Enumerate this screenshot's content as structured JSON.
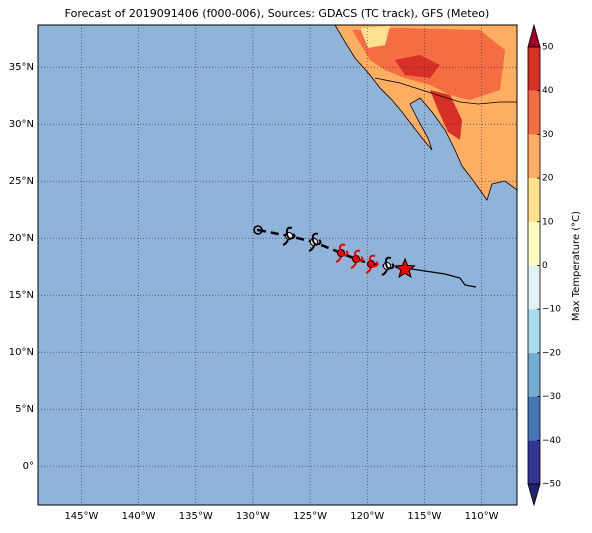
{
  "title": "Forecast of 2019091406 (f000-006), Sources: GDACS (TC track), GFS (Meteo)",
  "map": {
    "xlim": [
      -148.8,
      -106.9
    ],
    "ylim": [
      -3.4,
      38.7
    ],
    "xticks": [
      {
        "value": -145,
        "label": "145°W"
      },
      {
        "value": -140,
        "label": "140°W"
      },
      {
        "value": -135,
        "label": "135°W"
      },
      {
        "value": -130,
        "label": "130°W"
      },
      {
        "value": -125,
        "label": "125°W"
      },
      {
        "value": -120,
        "label": "120°W"
      },
      {
        "value": -115,
        "label": "115°W"
      },
      {
        "value": -110,
        "label": "110°W"
      }
    ],
    "yticks": [
      {
        "value": 0,
        "label": "0°"
      },
      {
        "value": 5,
        "label": "5°N"
      },
      {
        "value": 10,
        "label": "10°N"
      },
      {
        "value": 15,
        "label": "15°N"
      },
      {
        "value": 20,
        "label": "20°N"
      },
      {
        "value": 25,
        "label": "25°N"
      },
      {
        "value": 30,
        "label": "30°N"
      },
      {
        "value": 35,
        "label": "35°N"
      }
    ]
  },
  "colorbar": {
    "label": "Max Temperature (°C)",
    "lim": [
      -50,
      50
    ],
    "ticks": [
      {
        "value": -50,
        "label": "−50"
      },
      {
        "value": -40,
        "label": "−40"
      },
      {
        "value": -30,
        "label": "−30"
      },
      {
        "value": -20,
        "label": "−20"
      },
      {
        "value": -10,
        "label": "−10"
      },
      0,
      10,
      20,
      30,
      40,
      50
    ],
    "colors": [
      "#313695",
      "#4575b4",
      "#74add1",
      "#abd9e9",
      "#e0f3f8",
      "#ffffbf",
      "#fee090",
      "#fdae61",
      "#f46d43",
      "#d73027"
    ],
    "under_color": "#1f2470",
    "over_color": "#a50026"
  }
}
